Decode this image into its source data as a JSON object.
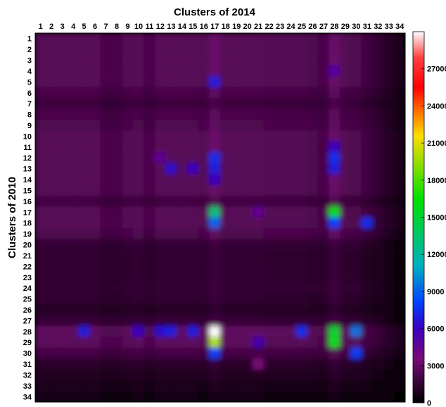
{
  "chart_data": {
    "type": "heatmap",
    "title": "Clusters of 2014",
    "xlabel": "Clusters of 2014",
    "ylabel": "Clusters of 2010",
    "x_categories": [
      "1",
      "2",
      "3",
      "4",
      "5",
      "6",
      "7",
      "8",
      "9",
      "10",
      "11",
      "12",
      "13",
      "14",
      "15",
      "16",
      "17",
      "18",
      "19",
      "20",
      "21",
      "22",
      "23",
      "24",
      "25",
      "26",
      "27",
      "28",
      "29",
      "30",
      "31",
      "32",
      "33",
      "34"
    ],
    "y_categories": [
      "1",
      "2",
      "3",
      "4",
      "5",
      "6",
      "7",
      "8",
      "9",
      "10",
      "11",
      "12",
      "13",
      "14",
      "15",
      "16",
      "17",
      "18",
      "19",
      "20",
      "21",
      "22",
      "23",
      "24",
      "25",
      "26",
      "27",
      "28",
      "29",
      "30",
      "31",
      "32",
      "33",
      "34"
    ],
    "colorbar": {
      "min": 0,
      "max": 30000,
      "ticks": [
        0,
        3000,
        6000,
        9000,
        12000,
        15000,
        18000,
        21000,
        24000,
        27000
      ],
      "colormap": "black-purple-blue-green-yellow-red-white"
    },
    "x_axis_position": "top",
    "grid": "dotted",
    "base_value": 2600,
    "row_profile": [
      1.0,
      1.0,
      1.0,
      1.0,
      1.0,
      0.85,
      0.7,
      0.85,
      0.9,
      1.0,
      1.0,
      1.0,
      1.0,
      1.0,
      1.0,
      0.75,
      1.0,
      1.0,
      0.9,
      0.6,
      0.55,
      0.55,
      0.55,
      0.6,
      0.55,
      0.45,
      0.6,
      1.1,
      1.05,
      0.8,
      0.5,
      0.4,
      0.3,
      0.2
    ],
    "col_profile": [
      1.0,
      1.0,
      1.0,
      1.0,
      1.0,
      1.0,
      0.85,
      0.85,
      0.95,
      1.0,
      0.85,
      1.0,
      1.0,
      1.0,
      1.0,
      0.95,
      1.2,
      1.0,
      1.0,
      1.0,
      1.0,
      0.95,
      0.95,
      0.95,
      0.95,
      0.9,
      0.85,
      1.15,
      0.95,
      0.9,
      0.75,
      0.6,
      0.45,
      0.3
    ],
    "column_streaks": [
      {
        "col": 17,
        "value": 3000
      },
      {
        "col": 28,
        "value": 3000
      }
    ],
    "row_streaks": [
      {
        "row": 28,
        "value": 2500
      }
    ],
    "hotspots": [
      {
        "row": 5,
        "col": 17,
        "value": 7000
      },
      {
        "row": 4,
        "col": 28,
        "value": 5000
      },
      {
        "row": 12,
        "col": 17,
        "value": 7500
      },
      {
        "row": 13,
        "col": 17,
        "value": 7000
      },
      {
        "row": 14,
        "col": 17,
        "value": 6000
      },
      {
        "row": 11,
        "col": 28,
        "value": 6000
      },
      {
        "row": 12,
        "col": 28,
        "value": 7500
      },
      {
        "row": 13,
        "col": 28,
        "value": 7000
      },
      {
        "row": 13,
        "col": 13,
        "value": 6500
      },
      {
        "row": 12,
        "col": 12,
        "value": 4500
      },
      {
        "row": 13,
        "col": 15,
        "value": 6000
      },
      {
        "row": 17,
        "col": 17,
        "value": 13000
      },
      {
        "row": 18,
        "col": 17,
        "value": 9000
      },
      {
        "row": 17,
        "col": 28,
        "value": 16000
      },
      {
        "row": 18,
        "col": 28,
        "value": 8000
      },
      {
        "row": 18,
        "col": 31,
        "value": 7500
      },
      {
        "row": 17,
        "col": 21,
        "value": 4500
      },
      {
        "row": 28,
        "col": 5,
        "value": 7000
      },
      {
        "row": 28,
        "col": 10,
        "value": 6000
      },
      {
        "row": 28,
        "col": 12,
        "value": 6500
      },
      {
        "row": 28,
        "col": 13,
        "value": 7000
      },
      {
        "row": 28,
        "col": 15,
        "value": 7000
      },
      {
        "row": 28,
        "col": 17,
        "value": 30000
      },
      {
        "row": 29,
        "col": 17,
        "value": 20000
      },
      {
        "row": 30,
        "col": 17,
        "value": 8000
      },
      {
        "row": 28,
        "col": 25,
        "value": 7500
      },
      {
        "row": 28,
        "col": 28,
        "value": 15000
      },
      {
        "row": 29,
        "col": 28,
        "value": 16000
      },
      {
        "row": 28,
        "col": 30,
        "value": 9500
      },
      {
        "row": 30,
        "col": 30,
        "value": 8000
      },
      {
        "row": 29,
        "col": 21,
        "value": 5500
      },
      {
        "row": 31,
        "col": 21,
        "value": 3500
      }
    ]
  }
}
